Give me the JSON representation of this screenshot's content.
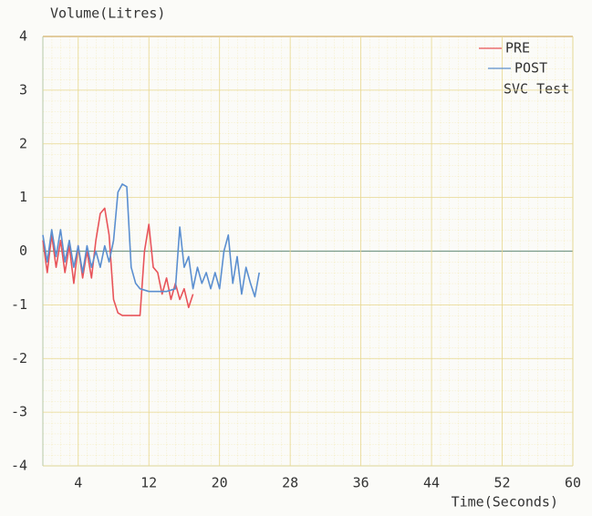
{
  "chart_data": {
    "type": "line",
    "y_label": "Volume(Litres)",
    "x_label": "Time(Seconds)",
    "annotation": "SVC Test",
    "xlim": [
      0,
      60
    ],
    "xticks": [
      4,
      12,
      20,
      28,
      36,
      44,
      52,
      60
    ],
    "ylim": [
      -4,
      4
    ],
    "yticks": [
      -4,
      -3,
      -2,
      -1,
      0,
      1,
      2,
      3,
      4
    ],
    "grid": true,
    "legend": "top-right",
    "series": [
      {
        "name": "PRE",
        "color": "#e8545a",
        "x": [
          0,
          0.5,
          1,
          1.5,
          2,
          2.5,
          3,
          3.5,
          4,
          4.5,
          5,
          5.5,
          6,
          6.5,
          7,
          7.5,
          8,
          8.5,
          9,
          10,
          11,
          11.5,
          12,
          12.5,
          13,
          13.5,
          14,
          14.5,
          15,
          15.5,
          16,
          16.5,
          17
        ],
        "values": [
          0.2,
          -0.4,
          0.3,
          -0.3,
          0.2,
          -0.4,
          0.1,
          -0.6,
          0.1,
          -0.5,
          0.0,
          -0.5,
          0.2,
          0.7,
          0.8,
          0.3,
          -0.9,
          -1.15,
          -1.2,
          -1.2,
          -1.2,
          0.0,
          0.5,
          -0.3,
          -0.4,
          -0.8,
          -0.5,
          -0.9,
          -0.6,
          -0.9,
          -0.7,
          -1.05,
          -0.8
        ]
      },
      {
        "name": "POST",
        "color": "#5b8fd0",
        "x": [
          0,
          0.5,
          1,
          1.5,
          2,
          2.5,
          3,
          3.5,
          4,
          4.5,
          5,
          5.5,
          6,
          6.5,
          7,
          7.5,
          8,
          8.5,
          9,
          9.5,
          10,
          10.5,
          11,
          12,
          13,
          14,
          15,
          15.5,
          16,
          16.5,
          17,
          17.5,
          18,
          18.5,
          19,
          19.5,
          20,
          20.5,
          21,
          21.5,
          22,
          22.5,
          23,
          23.5,
          24,
          24.5
        ],
        "values": [
          0.3,
          -0.2,
          0.4,
          -0.1,
          0.4,
          -0.2,
          0.2,
          -0.3,
          0.1,
          -0.4,
          0.1,
          -0.3,
          0.0,
          -0.3,
          0.1,
          -0.2,
          0.2,
          1.1,
          1.25,
          1.2,
          -0.3,
          -0.6,
          -0.7,
          -0.75,
          -0.75,
          -0.75,
          -0.7,
          0.45,
          -0.3,
          -0.1,
          -0.7,
          -0.3,
          -0.6,
          -0.4,
          -0.7,
          -0.4,
          -0.7,
          0.0,
          0.3,
          -0.6,
          -0.1,
          -0.8,
          -0.3,
          -0.6,
          -0.85,
          -0.4
        ]
      }
    ]
  }
}
